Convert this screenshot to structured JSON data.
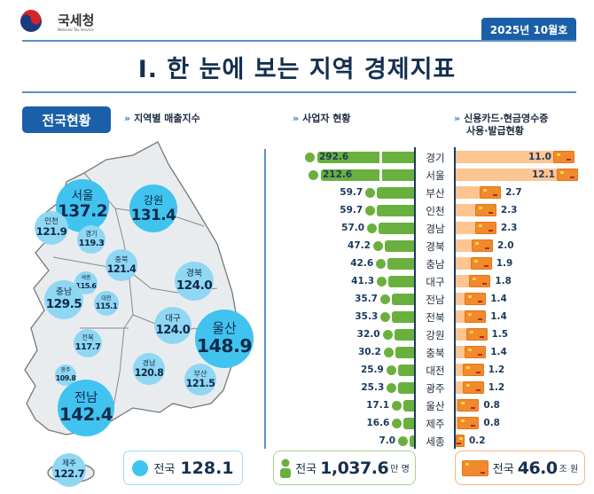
{
  "header": {
    "logo_text": "국세청",
    "logo_sub": "National Tax Service",
    "date_badge": "2025년 10월호",
    "title": "I. 한 눈에 보는 지역 경제지표"
  },
  "section_badge": "전국현황",
  "sections": {
    "sales_index": "지역별 매출지수",
    "business": "사업자 현황",
    "card_line1": "신용카드·현금영수증",
    "card_line2": "사용·발급현황"
  },
  "sales_index": {
    "bubbles": [
      {
        "name": "서울",
        "value": "137.2"
      },
      {
        "name": "강원",
        "value": "131.4"
      },
      {
        "name": "인천",
        "value": "121.9"
      },
      {
        "name": "경기",
        "value": "119.3"
      },
      {
        "name": "충북",
        "value": "121.4"
      },
      {
        "name": "경북",
        "value": "124.0"
      },
      {
        "name": "세종",
        "value": "115.6"
      },
      {
        "name": "충남",
        "value": "129.5"
      },
      {
        "name": "대전",
        "value": "115.1"
      },
      {
        "name": "대구",
        "value": "124.0"
      },
      {
        "name": "울산",
        "value": "148.9"
      },
      {
        "name": "전북",
        "value": "117.7"
      },
      {
        "name": "경남",
        "value": "120.8"
      },
      {
        "name": "부산",
        "value": "121.5"
      },
      {
        "name": "광주",
        "value": "109.8"
      },
      {
        "name": "전남",
        "value": "142.4"
      },
      {
        "name": "제주",
        "value": "122.7"
      }
    ],
    "total_label": "전국",
    "total_value": "128.1",
    "bubble_color": "#41c3ef"
  },
  "regions": [
    {
      "name": "경기",
      "business": "292.6",
      "card": "11.0"
    },
    {
      "name": "서울",
      "business": "212.6",
      "card": "12.1"
    },
    {
      "name": "부산",
      "business": "59.7",
      "card": "2.7"
    },
    {
      "name": "인천",
      "business": "59.7",
      "card": "2.3"
    },
    {
      "name": "경남",
      "business": "57.0",
      "card": "2.3"
    },
    {
      "name": "경북",
      "business": "47.2",
      "card": "2.0"
    },
    {
      "name": "충남",
      "business": "42.6",
      "card": "1.9"
    },
    {
      "name": "대구",
      "business": "41.3",
      "card": "1.8"
    },
    {
      "name": "전남",
      "business": "35.7",
      "card": "1.4"
    },
    {
      "name": "전북",
      "business": "35.3",
      "card": "1.4"
    },
    {
      "name": "강원",
      "business": "32.0",
      "card": "1.5"
    },
    {
      "name": "충북",
      "business": "30.2",
      "card": "1.4"
    },
    {
      "name": "대전",
      "business": "25.9",
      "card": "1.2"
    },
    {
      "name": "광주",
      "business": "25.3",
      "card": "1.2"
    },
    {
      "name": "울산",
      "business": "17.1",
      "card": "0.8"
    },
    {
      "name": "제주",
      "business": "16.6",
      "card": "0.8"
    },
    {
      "name": "세종",
      "business": "7.0",
      "card": "0.2"
    }
  ],
  "business_total": {
    "label": "전국",
    "value": "1,037.6",
    "unit": "만 명"
  },
  "card_total": {
    "label": "전국",
    "value": "46.0",
    "unit": "조 원"
  },
  "colors": {
    "green": "#6ab03e",
    "orange": "#f08a2c",
    "light_orange": "#fcc592",
    "blue": "#1a5fa8"
  }
}
